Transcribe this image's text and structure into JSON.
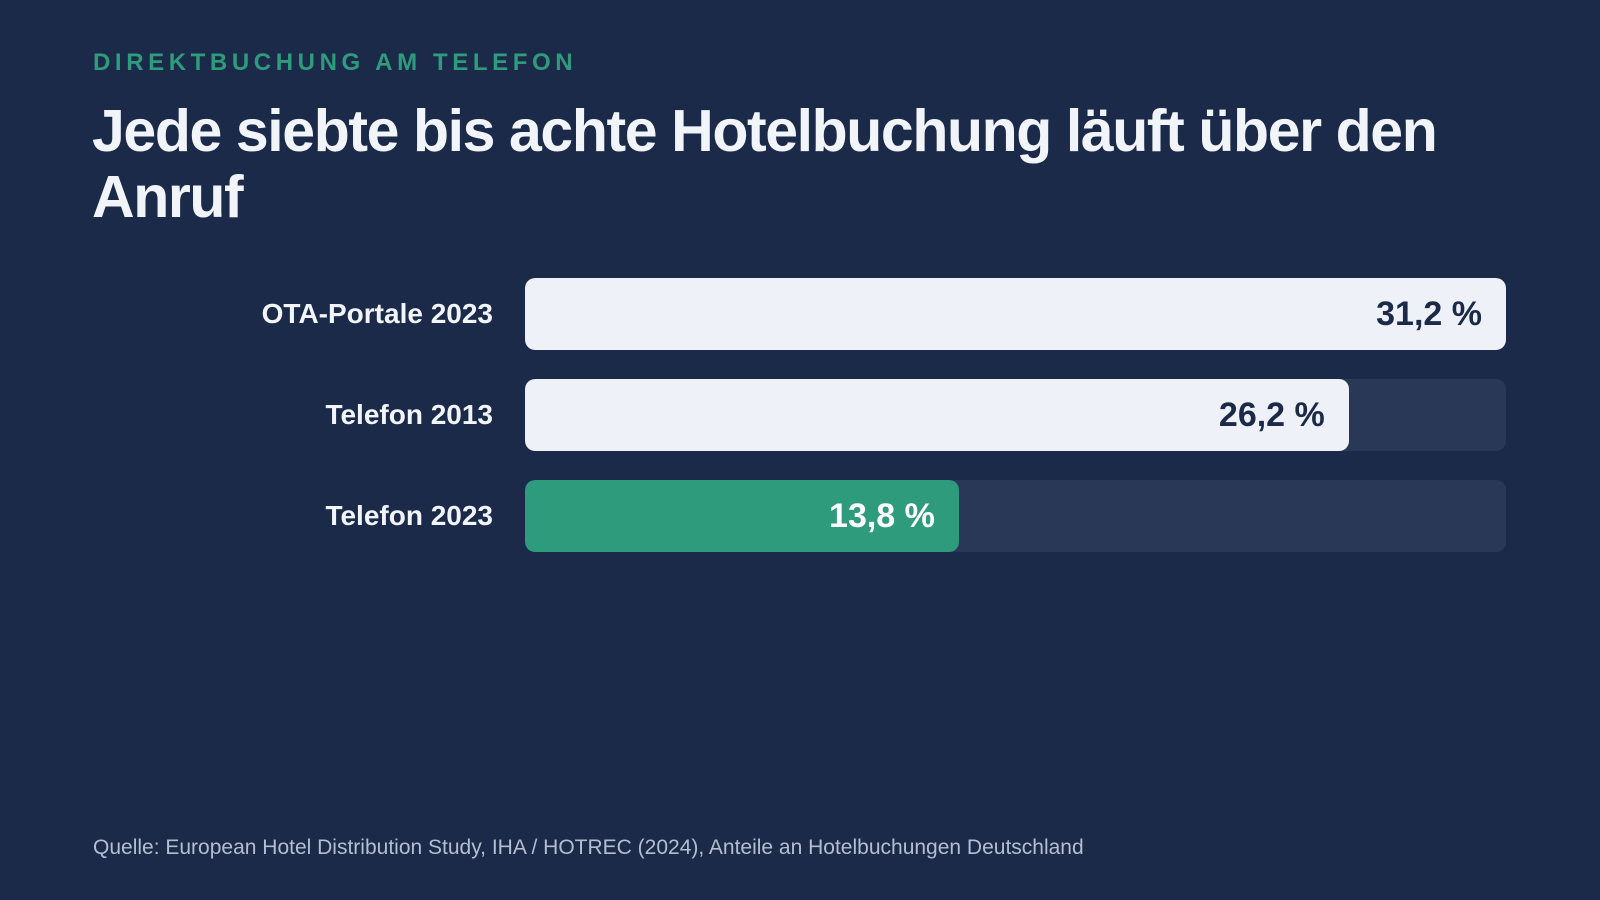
{
  "colors": {
    "background": "#1c2a4a",
    "eyebrow": "#2e9b7c",
    "bar_light": "#eef2f8",
    "bar_highlight": "#2e9b7c",
    "track": "#2a3857",
    "value_dark": "#1c2a4a",
    "value_light": "#ffffff"
  },
  "eyebrow": "DIREKTBUCHUNG AM TELEFON",
  "title": "Jede siebte bis achte Hotelbuchung läuft über den Anruf",
  "chart_data": {
    "type": "bar",
    "orientation": "horizontal",
    "categories": [
      "OTA-Portale 2023",
      "Telefon 2013",
      "Telefon 2023"
    ],
    "values": [
      31.2,
      26.2,
      13.8
    ],
    "value_labels": [
      "31,2 %",
      "26,2 %",
      "13,8 %"
    ],
    "highlight": [
      false,
      false,
      true
    ],
    "xlim": [
      0,
      31.2
    ],
    "grid": false,
    "legend": "none"
  },
  "source": "Quelle: European Hotel Distribution Study, IHA / HOTREC (2024), Anteile an Hotelbuchungen Deutschland"
}
